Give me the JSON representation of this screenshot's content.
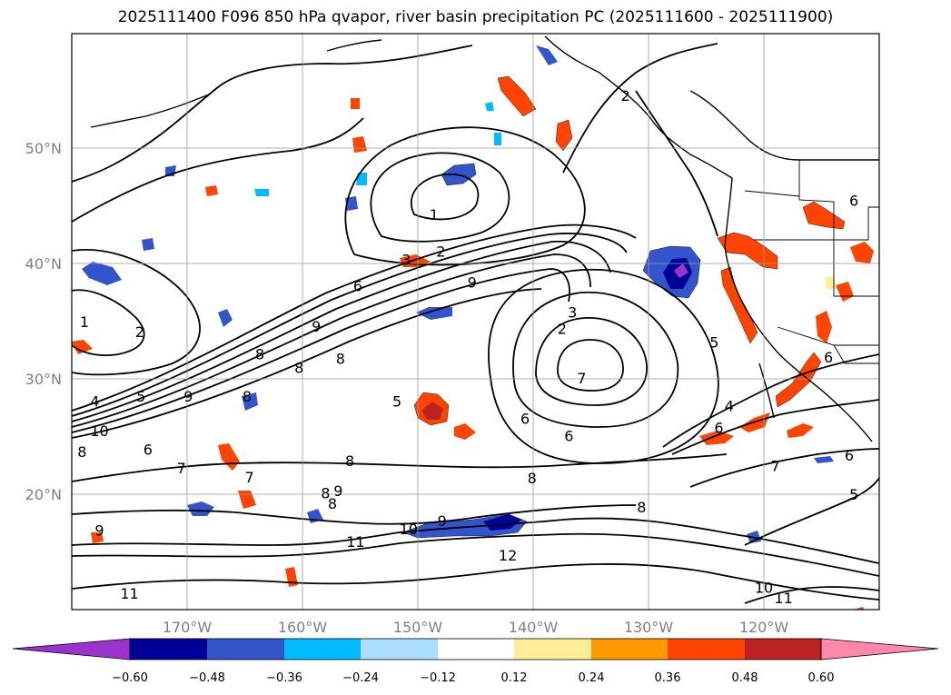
{
  "title": "2025111400 F096 850 hPa qvapor, river basin precipitation PC (2025111600 - 2025111900)",
  "map": {
    "lat_labels": [
      "50°N",
      "40°N",
      "30°N",
      "20°N"
    ],
    "lon_labels": [
      "170°W",
      "160°W",
      "150°W",
      "140°W",
      "130°W",
      "120°W"
    ],
    "lon_range": [
      -180,
      -110
    ],
    "lat_range": [
      10,
      60
    ],
    "contour_labels": [
      {
        "text": "2",
        "lon": -132.0,
        "lat": 54.5
      },
      {
        "text": "1",
        "lon": -148.6,
        "lat": 44.2
      },
      {
        "text": "2",
        "lon": -148.0,
        "lat": 41.0
      },
      {
        "text": "3",
        "lon": -151.0,
        "lat": 40.3
      },
      {
        "text": "6",
        "lon": -155.2,
        "lat": 38.0
      },
      {
        "text": "9",
        "lon": -145.3,
        "lat": 38.3
      },
      {
        "text": "9",
        "lon": -158.8,
        "lat": 34.5
      },
      {
        "text": "8",
        "lon": -163.7,
        "lat": 32.1
      },
      {
        "text": "8",
        "lon": -160.3,
        "lat": 30.9
      },
      {
        "text": "8",
        "lon": -156.7,
        "lat": 31.7
      },
      {
        "text": "1",
        "lon": -178.9,
        "lat": 34.9
      },
      {
        "text": "2",
        "lon": -174.1,
        "lat": 34.0
      },
      {
        "text": "4",
        "lon": -178.0,
        "lat": 28.0
      },
      {
        "text": "5",
        "lon": -174.0,
        "lat": 28.4
      },
      {
        "text": "9",
        "lon": -169.9,
        "lat": 28.4
      },
      {
        "text": "8",
        "lon": -164.8,
        "lat": 28.4
      },
      {
        "text": "10",
        "lon": -177.6,
        "lat": 25.4
      },
      {
        "text": "8",
        "lon": -179.1,
        "lat": 23.6
      },
      {
        "text": "6",
        "lon": -173.4,
        "lat": 23.8
      },
      {
        "text": "7",
        "lon": -170.5,
        "lat": 22.2
      },
      {
        "text": "7",
        "lon": -164.6,
        "lat": 21.4
      },
      {
        "text": "8",
        "lon": -155.9,
        "lat": 22.8
      },
      {
        "text": "8",
        "lon": -158.0,
        "lat": 20.0
      },
      {
        "text": "9",
        "lon": -156.9,
        "lat": 20.2
      },
      {
        "text": "8",
        "lon": -157.4,
        "lat": 19.1
      },
      {
        "text": "9",
        "lon": -177.6,
        "lat": 16.8
      },
      {
        "text": "11",
        "lon": -155.4,
        "lat": 15.8
      },
      {
        "text": "10",
        "lon": -150.8,
        "lat": 16.9
      },
      {
        "text": "9",
        "lon": -147.9,
        "lat": 17.6
      },
      {
        "text": "12",
        "lon": -142.2,
        "lat": 14.6
      },
      {
        "text": "11",
        "lon": -175.0,
        "lat": 11.3
      },
      {
        "text": "5",
        "lon": -151.8,
        "lat": 28.0
      },
      {
        "text": "6",
        "lon": -140.7,
        "lat": 26.5
      },
      {
        "text": "6",
        "lon": -136.9,
        "lat": 25.0
      },
      {
        "text": "8",
        "lon": -140.1,
        "lat": 21.3
      },
      {
        "text": "2",
        "lon": -137.5,
        "lat": 34.3
      },
      {
        "text": "3",
        "lon": -136.6,
        "lat": 35.7
      },
      {
        "text": "7",
        "lon": -135.8,
        "lat": 30.0
      },
      {
        "text": "5",
        "lon": -124.3,
        "lat": 33.1
      },
      {
        "text": "4",
        "lon": -123.0,
        "lat": 27.6
      },
      {
        "text": "6",
        "lon": -123.9,
        "lat": 25.7
      },
      {
        "text": "8",
        "lon": -130.6,
        "lat": 18.8
      },
      {
        "text": "7",
        "lon": -119.0,
        "lat": 22.4
      },
      {
        "text": "5",
        "lon": -112.2,
        "lat": 19.9
      },
      {
        "text": "6",
        "lon": -112.6,
        "lat": 23.3
      },
      {
        "text": "6",
        "lon": -114.4,
        "lat": 31.8
      },
      {
        "text": "6",
        "lon": -112.2,
        "lat": 45.4
      },
      {
        "text": "10",
        "lon": -120.0,
        "lat": 11.8
      },
      {
        "text": "11",
        "lon": -118.3,
        "lat": 10.9
      }
    ]
  },
  "colorbar": {
    "tick_labels": [
      "−0.60",
      "−0.48",
      "−0.36",
      "−0.24",
      "−0.12",
      "0.12",
      "0.24",
      "0.36",
      "0.48",
      "0.60"
    ],
    "colors": [
      "#9933cc",
      "#000099",
      "#3355cc",
      "#00bbff",
      "#aaddff",
      "#ffffff",
      "#ffee99",
      "#ff9900",
      "#ff4400",
      "#bb2222",
      "#ff88aa"
    ]
  }
}
